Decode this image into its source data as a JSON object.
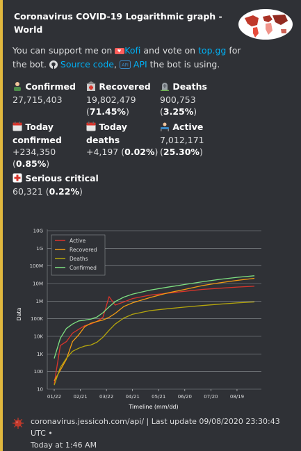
{
  "embed": {
    "accent": "#e0b73e",
    "title": "Coronavirus COVID-19 Logarithmic graph - World",
    "description": {
      "line1_prefix": "You can support me on ",
      "kofi": "Kofi",
      "and_vote": " and vote on ",
      "topgg": "top.gg",
      "for_bot": " for",
      "line2_prefix": "the bot. ",
      "source_code": "Source code",
      "comma": ", ",
      "api": "API",
      "line2_suffix": " the bot is using."
    },
    "fields": {
      "confirmed": {
        "name": "Confirmed",
        "value": "27,715,403",
        "icon": "person-icon"
      },
      "recovered": {
        "name": "Recovered",
        "value": "19,802,479",
        "pct": "71.45%",
        "icon": "hospital-icon"
      },
      "deaths": {
        "name": "Deaths",
        "value": "900,753",
        "pct": "3.25%",
        "icon": "tombstone-icon"
      },
      "today_confirmed": {
        "name1": "Today",
        "name2": "confirmed",
        "value": "+234,350",
        "pct": "0.85%",
        "icon": "calendar-icon"
      },
      "today_deaths": {
        "name": "Today deaths",
        "value": "+4,197",
        "pct": "0.02%",
        "icon": "calendar-icon"
      },
      "active": {
        "name": "Active",
        "value": "7,012,171",
        "pct": "25.30%",
        "icon": "bed-icon"
      },
      "serious": {
        "name": "Serious critical",
        "value": "60,321",
        "pct": "0.22%",
        "icon": "first-aid-icon"
      }
    },
    "footer": {
      "line1": "coronavirus.jessicoh.com/api/ | Last update 09/08/2020 23:30:43 UTC •",
      "line2": "Today at 1:46 AM",
      "icon": "virus-icon"
    }
  },
  "chart_data": {
    "type": "line",
    "xlabel": "Timeline (mm/dd)",
    "ylabel": "Data",
    "yscale": "log",
    "ylim": [
      10,
      10000000000
    ],
    "yticks": [
      "10",
      "100",
      "1K",
      "10K",
      "100K",
      "1M",
      "10M",
      "100M",
      "1G",
      "10G"
    ],
    "xticks": [
      "01/22",
      "02/21",
      "03/22",
      "04/21",
      "05/21",
      "06/20",
      "07/20",
      "08/19"
    ],
    "grid": true,
    "legend_position": "top-left",
    "series": [
      {
        "name": "Active",
        "color": "#d9342b",
        "x": [
          "01/22",
          "01/29",
          "02/05",
          "02/12",
          "02/19",
          "02/26",
          "03/04",
          "03/11",
          "03/18",
          "03/25",
          "04/01",
          "04/11",
          "04/21",
          "05/11",
          "05/31",
          "06/20",
          "07/10",
          "07/30",
          "08/19",
          "09/08"
        ],
        "values": [
          20,
          3000,
          5000,
          15000,
          25000,
          40000,
          50000,
          70000,
          120000,
          1800000,
          600000,
          900000,
          1400000,
          2200000,
          2800000,
          3600000,
          4600000,
          5400000,
          6300000,
          7012171
        ]
      },
      {
        "name": "Recovered",
        "color": "#f39c12",
        "x": [
          "01/22",
          "01/29",
          "02/05",
          "02/12",
          "02/19",
          "02/26",
          "03/04",
          "03/11",
          "03/18",
          "03/25",
          "04/01",
          "04/11",
          "04/21",
          "05/11",
          "05/31",
          "06/20",
          "07/10",
          "07/30",
          "08/19",
          "09/08"
        ],
        "values": [
          30,
          120,
          500,
          5000,
          12000,
          35000,
          55000,
          70000,
          85000,
          120000,
          200000,
          500000,
          800000,
          1600000,
          2900000,
          4600000,
          7600000,
          11000000,
          15000000,
          19802479
        ]
      },
      {
        "name": "Deaths",
        "color": "#b5a60d",
        "x": [
          "01/22",
          "01/29",
          "02/05",
          "02/12",
          "02/19",
          "02/26",
          "03/04",
          "03/11",
          "03/18",
          "03/25",
          "04/01",
          "04/11",
          "04/21",
          "05/11",
          "05/31",
          "06/20",
          "07/10",
          "07/30",
          "08/19",
          "09/08"
        ],
        "values": [
          17,
          170,
          560,
          1400,
          2100,
          2800,
          3200,
          4600,
          9000,
          22000,
          50000,
          110000,
          180000,
          290000,
          370000,
          460000,
          560000,
          670000,
          790000,
          900753
        ]
      },
      {
        "name": "Confirmed",
        "color": "#7ee081",
        "x": [
          "01/22",
          "01/29",
          "02/05",
          "02/12",
          "02/19",
          "02/26",
          "03/04",
          "03/11",
          "03/18",
          "03/25",
          "04/01",
          "04/11",
          "04/21",
          "05/11",
          "05/31",
          "06/20",
          "07/10",
          "07/30",
          "08/19",
          "09/08"
        ],
        "values": [
          555,
          7800,
          28000,
          50000,
          75000,
          83000,
          95000,
          125000,
          220000,
          470000,
          940000,
          1700000,
          2500000,
          4200000,
          6200000,
          8800000,
          12600000,
          17200000,
          22400000,
          27715403
        ]
      }
    ]
  }
}
